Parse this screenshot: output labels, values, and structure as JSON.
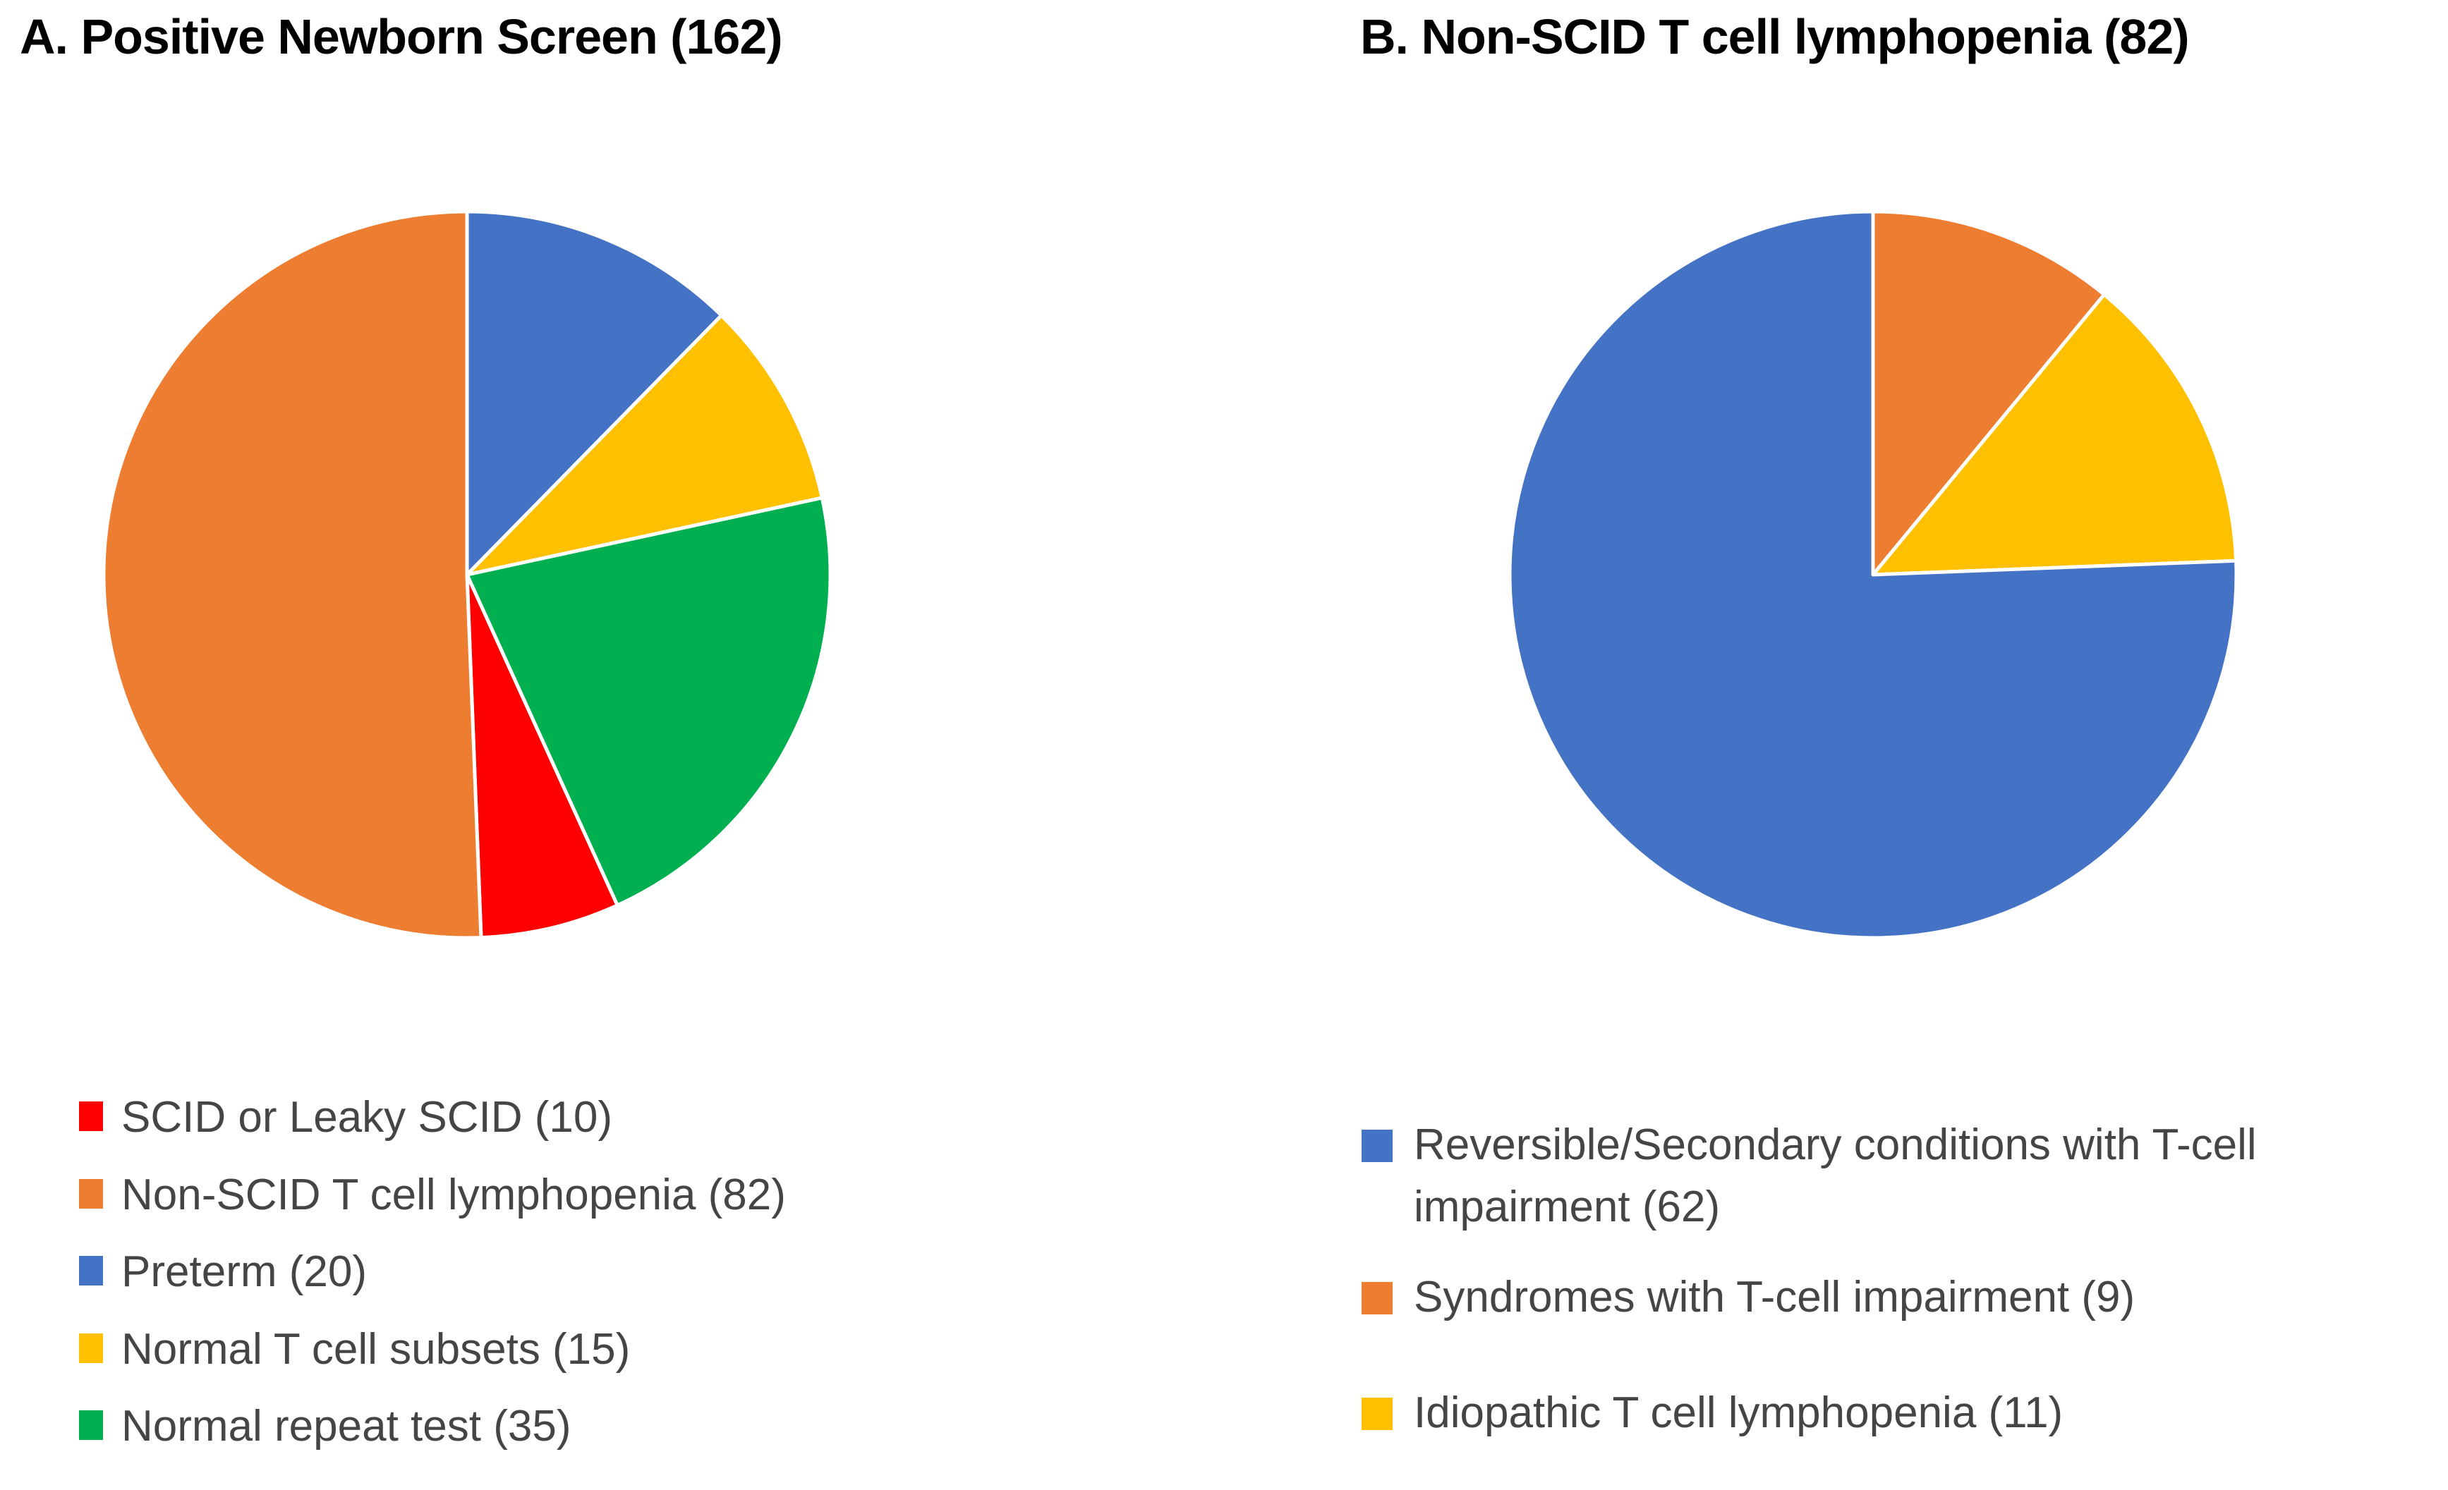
{
  "figure_background": "#FFFFFF",
  "colors": {
    "blue": "#4472C4",
    "orange": "#ED7D31",
    "yellow": "#FFC000",
    "green": "#00B050",
    "red": "#FF0000",
    "slice_separator": "#FFFFFF",
    "legend_text": "#454545",
    "title_text": "#000000"
  },
  "chart_data": [
    {
      "type": "pie",
      "title": "A. Positive Newborn Screen (162)",
      "total": 162,
      "legend_position": "bottom-left",
      "slices": [
        {
          "name": "SCID or Leaky SCID",
          "label": "SCID or Leaky SCID (10)",
          "value": 10,
          "color": "#FF0000"
        },
        {
          "name": "Non-SCID T cell lymphopenia",
          "label": "Non-SCID T cell lymphopenia (82)",
          "value": 82,
          "color": "#ED7D31"
        },
        {
          "name": "Preterm",
          "label": "Preterm (20)",
          "value": 20,
          "color": "#4472C4"
        },
        {
          "name": "Normal T cell subsets",
          "label": "Normal T cell subsets (15)",
          "value": 15,
          "color": "#FFC000"
        },
        {
          "name": "Normal repeat test",
          "label": "Normal repeat test (35)",
          "value": 35,
          "color": "#00B050"
        }
      ],
      "draw_order_clockwise_from_top": [
        2,
        3,
        4,
        0,
        1
      ],
      "start_angle_deg": 0,
      "direction": "clockwise"
    },
    {
      "type": "pie",
      "title": "B. Non-SCID T cell lymphopenia (82)",
      "total": 82,
      "legend_position": "bottom-left",
      "slices": [
        {
          "name": "Reversible/Secondary conditions with T-cell impairment",
          "label": "Reversible/Secondary conditions with T-cell impairment (62)",
          "value": 62,
          "color": "#4472C4"
        },
        {
          "name": "Syndromes with T-cell impairment",
          "label": "Syndromes with T-cell impairment (9)",
          "value": 9,
          "color": "#ED7D31"
        },
        {
          "name": "Idiopathic T cell lymphopenia",
          "label": "Idiopathic T cell lymphopenia (11)",
          "value": 11,
          "color": "#FFC000"
        }
      ],
      "draw_order_clockwise_from_top": [
        1,
        2,
        0
      ],
      "start_angle_deg": 0,
      "direction": "clockwise"
    }
  ]
}
